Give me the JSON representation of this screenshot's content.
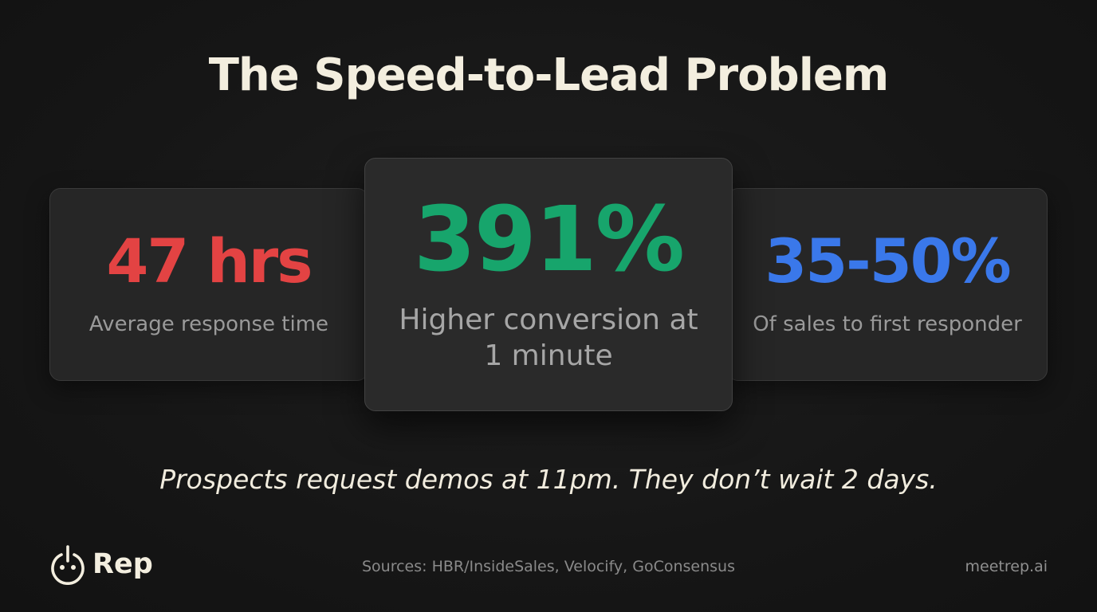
{
  "title": "The Speed-to-Lead Problem",
  "stats": [
    {
      "value": "47 hrs",
      "label": "Average response time",
      "color": "#e34343"
    },
    {
      "value": "391%",
      "label": "Higher conversion at 1 minute",
      "color": "#17a56c"
    },
    {
      "value": "35-50%",
      "label": "Of sales to first responder",
      "color": "#3a78ea"
    }
  ],
  "tagline": "Prospects request demos at 11pm. They don’t wait 2 days.",
  "footer": {
    "brand_name": "Rep",
    "brand_icon": "power-face-icon",
    "sources": "Sources: HBR/InsideSales, Velocify, GoConsensus",
    "website": "meetrep.ai"
  }
}
